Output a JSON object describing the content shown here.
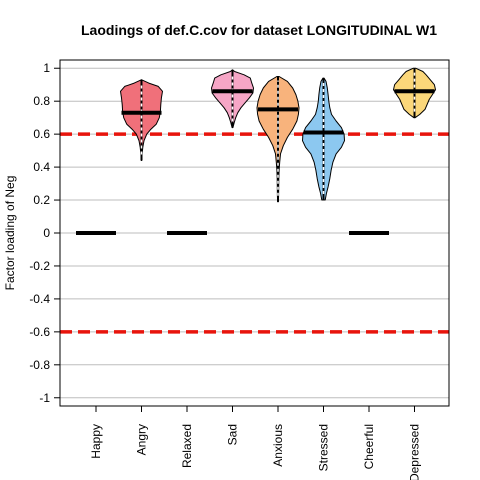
{
  "chart_data": {
    "type": "violin",
    "title": "Laodings of def.C.cov for dataset LONGITUDINAL W1",
    "xlabel": "",
    "ylabel": "Factor loading of Neg",
    "ylim": [
      -1.05,
      1.05
    ],
    "yticks": [
      -1,
      -0.8,
      -0.6,
      -0.4,
      -0.2,
      0,
      0.2,
      0.4,
      0.6,
      0.8,
      1
    ],
    "ytick_labels": [
      "-1",
      "-0.8",
      "-0.6",
      "-0.4",
      "-0.2",
      "0",
      "0.2",
      "0.4",
      "0.6",
      "0.8",
      "1"
    ],
    "grid": true,
    "reference_lines": [
      {
        "y": 0.6,
        "color": "#e8140c",
        "style": "dashed"
      },
      {
        "y": -0.6,
        "color": "#e8140c",
        "style": "dashed"
      }
    ],
    "categories": [
      "Happy",
      "Angry",
      "Relaxed",
      "Sad",
      "Anxious",
      "Stressed",
      "Cheerful",
      "Depressed"
    ],
    "items": [
      {
        "label": "Happy",
        "mean": 0,
        "color": null,
        "density": null
      },
      {
        "label": "Angry",
        "mean": 0.73,
        "color": "#f0707a",
        "density": [
          [
            0.44,
            0.01
          ],
          [
            0.48,
            0.03
          ],
          [
            0.52,
            0.06
          ],
          [
            0.56,
            0.12
          ],
          [
            0.6,
            0.25
          ],
          [
            0.63,
            0.45
          ],
          [
            0.66,
            0.7
          ],
          [
            0.7,
            0.85
          ],
          [
            0.74,
            0.9
          ],
          [
            0.78,
            0.92
          ],
          [
            0.82,
            0.95
          ],
          [
            0.86,
            1.0
          ],
          [
            0.89,
            0.8
          ],
          [
            0.91,
            0.35
          ],
          [
            0.93,
            0.01
          ]
        ]
      },
      {
        "label": "Relaxed",
        "mean": 0,
        "color": null,
        "density": null
      },
      {
        "label": "Sad",
        "mean": 0.86,
        "color": "#f6a6c6",
        "density": [
          [
            0.64,
            0.02
          ],
          [
            0.67,
            0.08
          ],
          [
            0.7,
            0.15
          ],
          [
            0.73,
            0.25
          ],
          [
            0.76,
            0.4
          ],
          [
            0.79,
            0.6
          ],
          [
            0.82,
            0.8
          ],
          [
            0.85,
            0.97
          ],
          [
            0.88,
            1.0
          ],
          [
            0.91,
            0.92
          ],
          [
            0.94,
            0.85
          ],
          [
            0.96,
            0.55
          ],
          [
            0.98,
            0.1
          ],
          [
            0.99,
            0.01
          ]
        ]
      },
      {
        "label": "Anxious",
        "mean": 0.75,
        "color": "#f8b37c",
        "density": [
          [
            0.19,
            0.02
          ],
          [
            0.23,
            0.03
          ],
          [
            0.28,
            0.035
          ],
          [
            0.33,
            0.04
          ],
          [
            0.38,
            0.05
          ],
          [
            0.43,
            0.08
          ],
          [
            0.48,
            0.12
          ],
          [
            0.53,
            0.25
          ],
          [
            0.58,
            0.45
          ],
          [
            0.63,
            0.7
          ],
          [
            0.68,
            0.9
          ],
          [
            0.72,
            0.97
          ],
          [
            0.76,
            1.0
          ],
          [
            0.8,
            0.95
          ],
          [
            0.84,
            0.85
          ],
          [
            0.88,
            0.7
          ],
          [
            0.92,
            0.45
          ],
          [
            0.95,
            0.05
          ]
        ]
      },
      {
        "label": "Stressed",
        "mean": 0.61,
        "color": "#8cc8f0",
        "density": [
          [
            0.2,
            0.08
          ],
          [
            0.24,
            0.14
          ],
          [
            0.28,
            0.22
          ],
          [
            0.33,
            0.3
          ],
          [
            0.38,
            0.36
          ],
          [
            0.43,
            0.45
          ],
          [
            0.48,
            0.6
          ],
          [
            0.52,
            0.85
          ],
          [
            0.56,
            1.0
          ],
          [
            0.6,
            0.98
          ],
          [
            0.64,
            0.85
          ],
          [
            0.68,
            0.6
          ],
          [
            0.72,
            0.38
          ],
          [
            0.76,
            0.3
          ],
          [
            0.8,
            0.25
          ],
          [
            0.84,
            0.22
          ],
          [
            0.88,
            0.18
          ],
          [
            0.92,
            0.12
          ],
          [
            0.94,
            0.03
          ]
        ]
      },
      {
        "label": "Cheerful",
        "mean": 0,
        "color": null,
        "density": null
      },
      {
        "label": "Depressed",
        "mean": 0.86,
        "color": "#fbd77a",
        "density": [
          [
            0.7,
            0.03
          ],
          [
            0.72,
            0.25
          ],
          [
            0.75,
            0.5
          ],
          [
            0.78,
            0.6
          ],
          [
            0.81,
            0.7
          ],
          [
            0.84,
            0.85
          ],
          [
            0.87,
            1.0
          ],
          [
            0.9,
            0.95
          ],
          [
            0.93,
            0.75
          ],
          [
            0.96,
            0.55
          ],
          [
            0.98,
            0.4
          ],
          [
            1.0,
            0.05
          ]
        ]
      }
    ]
  }
}
